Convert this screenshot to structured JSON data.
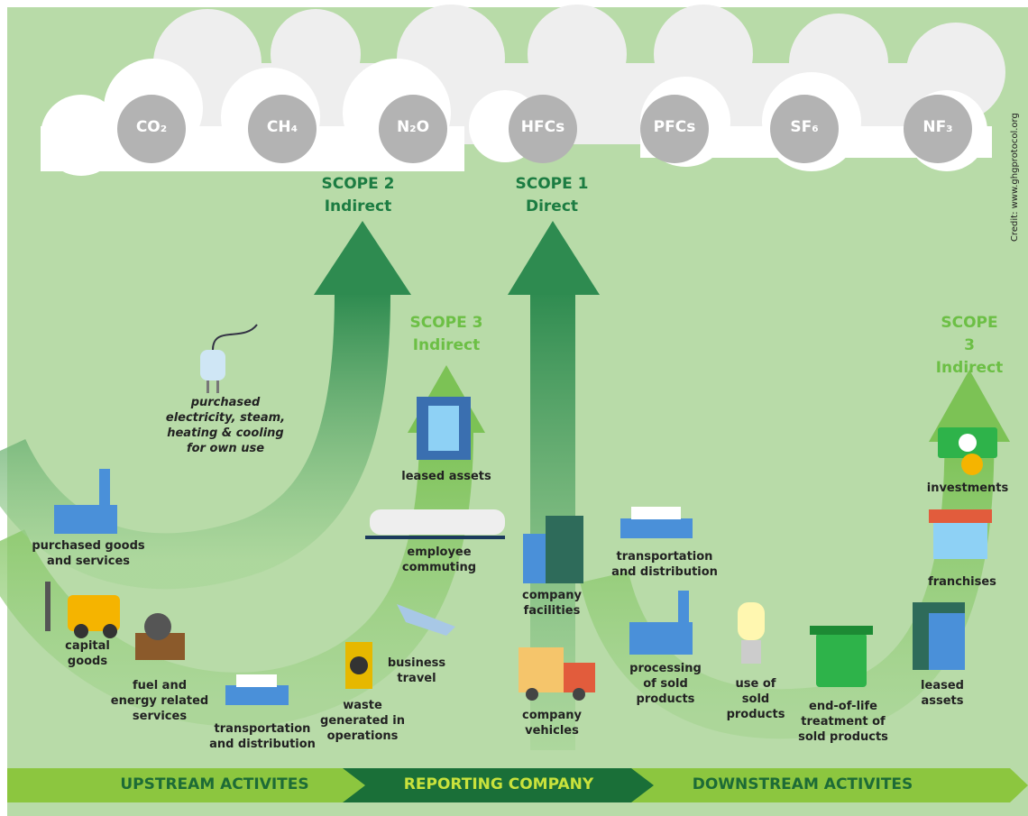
{
  "gases": [
    "CO₂",
    "CH₄",
    "N₂O",
    "HFCs",
    "PFCs",
    "SF₆",
    "NF₃"
  ],
  "credit": "Credit: www.ghgprotocol.org",
  "scopes": [
    {
      "title": "SCOPE 2",
      "subtitle": "Indirect"
    },
    {
      "title": "SCOPE 1",
      "subtitle": "Direct"
    },
    {
      "title": "SCOPE 3",
      "subtitle": "Indirect"
    },
    {
      "title": "SCOPE 3",
      "subtitle": "Indirect"
    }
  ],
  "scope2_activity": "purchased\nelectricity, steam,\nheating & cooling\nfor own use",
  "upstream": [
    "purchased goods\nand services",
    "capital\ngoods",
    "fuel and\nenergy related\nservices",
    "transportation\nand distribution",
    "waste\ngenerated in\noperations",
    "business\ntravel",
    "employee\ncommuting",
    "leased assets"
  ],
  "company": [
    "company\nfacilities",
    "company\nvehicles"
  ],
  "downstream": [
    "transportation\nand distribution",
    "processing\nof sold\nproducts",
    "use of\nsold\nproducts",
    "end-of-life\ntreatment of\nsold products",
    "leased assets",
    "franchises",
    "investments"
  ],
  "bottom_bar": [
    "UPSTREAM ACTIVITES",
    "REPORTING COMPANY",
    "DOWNSTREAM ACTIVITES"
  ]
}
